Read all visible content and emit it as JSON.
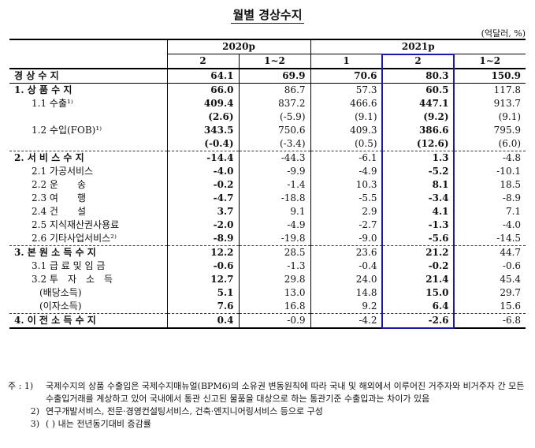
{
  "title": "월별 경상수지",
  "unit": "(억달러, %)",
  "header": {
    "year1": "2020p",
    "year2": "2021p",
    "months": [
      "2",
      "1~2",
      "1",
      "2",
      "1~2"
    ]
  },
  "rows": [
    {
      "label": "경 상 수 지",
      "values": [
        "64.1",
        "69.9",
        "70.6",
        "80.3",
        "150.9"
      ],
      "style": "total"
    },
    {
      "label": "1. 상 품 수 지",
      "values": [
        "66.0",
        "86.7",
        "57.3",
        "60.5",
        "117.8"
      ],
      "style": "l1"
    },
    {
      "label": "1.1 수출¹⁾",
      "values": [
        "409.4",
        "837.2",
        "466.6",
        "447.1",
        "913.7"
      ],
      "style": "l2"
    },
    {
      "label": "",
      "values": [
        "(2.6)",
        "(-5.9)",
        "(9.1)",
        "(9.2)",
        "(9.1)"
      ],
      "style": "l2"
    },
    {
      "label": "1.2 수입(FOB)¹⁾",
      "values": [
        "343.5",
        "750.6",
        "409.3",
        "386.6",
        "795.9"
      ],
      "style": "l2"
    },
    {
      "label": "",
      "values": [
        "(-0.4)",
        "(-3.4)",
        "(0.5)",
        "(12.6)",
        "(6.0)"
      ],
      "style": "l2"
    },
    {
      "label": "2. 서 비 스 수 지",
      "values": [
        "-14.4",
        "-44.3",
        "-6.1",
        "1.3",
        "-4.8"
      ],
      "style": "l1 sec"
    },
    {
      "label": "2.1 가공서비스",
      "values": [
        "-4.0",
        "-9.9",
        "-4.9",
        "-5.2",
        "-10.1"
      ],
      "style": "l2"
    },
    {
      "label": "2.2 운　　송",
      "values": [
        "-0.2",
        "-1.4",
        "10.3",
        "8.1",
        "18.5"
      ],
      "style": "l2"
    },
    {
      "label": "2.3 여　　행",
      "values": [
        "-4.7",
        "-18.8",
        "-5.5",
        "-3.4",
        "-8.9"
      ],
      "style": "l2"
    },
    {
      "label": "2.4 건　　설",
      "values": [
        "3.7",
        "9.1",
        "2.9",
        "4.1",
        "7.1"
      ],
      "style": "l2"
    },
    {
      "label": "2.5 지식재산권사용료",
      "values": [
        "-2.0",
        "-4.9",
        "-2.7",
        "-1.3",
        "-4.0"
      ],
      "style": "l2"
    },
    {
      "label": "2.6 기타사업서비스²⁾",
      "values": [
        "-8.9",
        "-19.8",
        "-9.0",
        "-5.6",
        "-14.5"
      ],
      "style": "l2"
    },
    {
      "label": "3. 본 원 소 득 수 지",
      "values": [
        "12.2",
        "28.5",
        "23.6",
        "21.2",
        "44.7"
      ],
      "style": "l1 sec"
    },
    {
      "label": "3.1 급 료 및 임 금",
      "values": [
        "-0.6",
        "-1.3",
        "-0.4",
        "-0.2",
        "-0.6"
      ],
      "style": "l2"
    },
    {
      "label": "3.2 투　자　소　득",
      "values": [
        "12.7",
        "29.8",
        "24.0",
        "21.4",
        "45.4"
      ],
      "style": "l2"
    },
    {
      "label": "(배당소득)",
      "values": [
        "5.1",
        "13.0",
        "14.8",
        "15.0",
        "29.7"
      ],
      "style": "l3"
    },
    {
      "label": "(이자소득)",
      "values": [
        "7.6",
        "16.8",
        "9.2",
        "6.4",
        "15.6"
      ],
      "style": "l3"
    },
    {
      "label": "4. 이 전 소 득 수 지",
      "values": [
        "0.4",
        "-0.9",
        "-4.2",
        "-2.6",
        "-6.8"
      ],
      "style": "l1 sec last"
    }
  ],
  "notes": [
    {
      "key": "주 : 1)",
      "text": "국제수지의 상품 수출입은 국제수지매뉴얼(BPM6)의 소유권 변동원칙에 따라 국내 및 해외에서 이루어진 거주자와 비거주자 간 모든 수출입거래를 계상하고 있어 국내에서 통관 신고된 물품을 대상으로 하는 통관기준 수출입과는 차이가 있음"
    },
    {
      "key": "2)",
      "text": "연구개발서비스, 전문·경영컨설팅서비스, 건축·엔지니어링서비스 등으로 구성"
    },
    {
      "key": "3)",
      "text": "(  ) 내는 전년동기대비 증감률"
    }
  ]
}
